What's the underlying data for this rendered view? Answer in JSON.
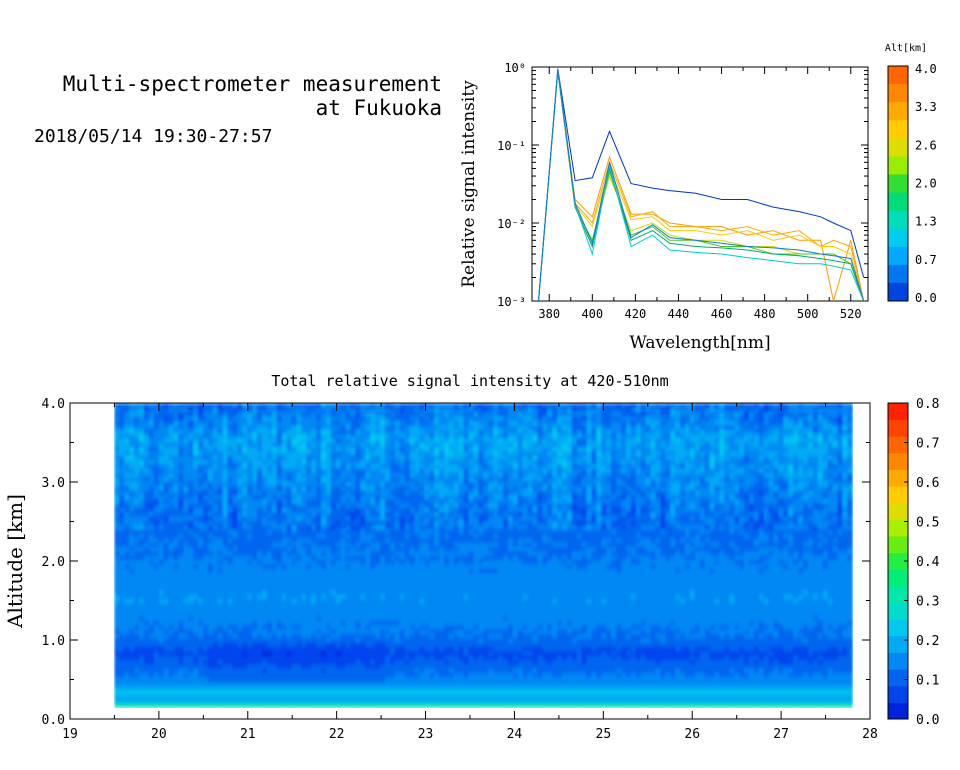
{
  "header": {
    "title_line1": "Multi-spectrometer measurement",
    "title_line2": "at Fukuoka",
    "date_range": "2018/05/14 19:30-27:57"
  },
  "chart_data": [
    {
      "type": "line",
      "xlabel": "Wavelength[nm]",
      "ylabel": "Relative signal intensity",
      "xlim": [
        372,
        528
      ],
      "ylim": [
        0.001,
        1
      ],
      "log_y": true,
      "x_ticks": [
        380,
        400,
        420,
        440,
        460,
        480,
        500,
        520
      ],
      "y_ticks": [
        {
          "value": 1,
          "label": "10⁰"
        },
        {
          "value": 0.1,
          "label": "10⁻¹"
        },
        {
          "value": 0.01,
          "label": "10⁻²"
        },
        {
          "value": 0.001,
          "label": "10⁻³"
        }
      ],
      "x": [
        375,
        384,
        392,
        400,
        408,
        418,
        428,
        436,
        448,
        460,
        472,
        484,
        496,
        506,
        512,
        520,
        526
      ],
      "series": [
        {
          "color": "#0033cc",
          "values": [
            0.001,
            0.95,
            0.035,
            0.038,
            0.15,
            0.032,
            0.028,
            0.026,
            0.024,
            0.02,
            0.02,
            0.016,
            0.014,
            0.012,
            0.01,
            0.008,
            0.002
          ]
        },
        {
          "color": "#ff9900",
          "values": [
            0.001,
            0.9,
            0.02,
            0.012,
            0.07,
            0.013,
            0.013,
            0.01,
            0.009,
            0.009,
            0.007,
            0.008,
            0.006,
            0.006,
            0.001,
            0.006,
            0.001
          ]
        },
        {
          "color": "#ffaa00",
          "values": [
            0.001,
            0.9,
            0.018,
            0.01,
            0.06,
            0.012,
            0.014,
            0.009,
            0.009,
            0.008,
            0.009,
            0.007,
            0.008,
            0.005,
            0.006,
            0.005,
            0.001
          ]
        },
        {
          "color": "#ffcc00",
          "values": [
            0.001,
            0.88,
            0.017,
            0.009,
            0.05,
            0.011,
            0.012,
            0.008,
            0.008,
            0.007,
            0.008,
            0.006,
            0.007,
            0.005,
            0.005,
            0.004,
            0.001
          ]
        },
        {
          "color": "#ccdd00",
          "values": [
            0.001,
            0.88,
            0.016,
            0.006,
            0.04,
            0.008,
            0.01,
            0.007,
            0.006,
            0.006,
            0.005,
            0.005,
            0.004,
            0.004,
            0.004,
            0.003,
            0.001
          ]
        },
        {
          "color": "#44cc22",
          "values": [
            0.001,
            0.9,
            0.016,
            0.006,
            0.045,
            0.007,
            0.009,
            0.006,
            0.006,
            0.005,
            0.005,
            0.004,
            0.004,
            0.004,
            0.004,
            0.003,
            0.001
          ]
        },
        {
          "color": "#00aa66",
          "values": [
            0.001,
            0.9,
            0.016,
            0.005,
            0.05,
            0.006,
            0.008,
            0.0055,
            0.005,
            0.0048,
            0.0045,
            0.004,
            0.0038,
            0.0035,
            0.0033,
            0.003,
            0.001
          ]
        },
        {
          "color": "#00cccc",
          "values": [
            0.001,
            0.92,
            0.017,
            0.004,
            0.055,
            0.005,
            0.007,
            0.0045,
            0.0042,
            0.004,
            0.0036,
            0.0033,
            0.003,
            0.003,
            0.0028,
            0.0025,
            0.001
          ]
        },
        {
          "color": "#1177dd",
          "values": [
            0.001,
            0.93,
            0.018,
            0.0055,
            0.06,
            0.0065,
            0.0095,
            0.0065,
            0.006,
            0.0055,
            0.005,
            0.0048,
            0.0045,
            0.004,
            0.0038,
            0.0035,
            0.001
          ]
        }
      ],
      "colorbar": {
        "title": "Alt[km]",
        "labels": [
          "4.0",
          "3.3",
          "2.6",
          "2.0",
          "1.3",
          "0.7",
          "0.0"
        ],
        "colors": [
          "#ff6600",
          "#ff8800",
          "#ffaa00",
          "#ffcc00",
          "#dddd00",
          "#99ee00",
          "#33dd33",
          "#00dd77",
          "#00ddbb",
          "#00ccee",
          "#00aaff",
          "#0077ee",
          "#0044dd"
        ]
      }
    },
    {
      "type": "heatmap",
      "title": "Total relative signal intensity at 420-510nm",
      "ylabel": "Altitude [km]",
      "xlim": [
        19,
        28
      ],
      "ylim": [
        0,
        4
      ],
      "x_ticks": [
        19,
        20,
        21,
        22,
        23,
        24,
        25,
        26,
        27,
        28
      ],
      "y_ticks": [
        {
          "value": 0,
          "label": "0.0"
        },
        {
          "value": 1,
          "label": "1.0"
        },
        {
          "value": 2,
          "label": "2.0"
        },
        {
          "value": 3,
          "label": "3.0"
        },
        {
          "value": 4,
          "label": "4.0"
        }
      ],
      "data_x_range": [
        19.5,
        27.8
      ],
      "data_y_range": [
        0.15,
        4.0
      ],
      "altitude_profile": [
        {
          "alt": 0.15,
          "value": 0.3
        },
        {
          "alt": 0.22,
          "value": 0.18
        },
        {
          "alt": 0.3,
          "value": 0.22
        },
        {
          "alt": 0.4,
          "value": 0.16
        },
        {
          "alt": 0.8,
          "value": 0.07
        },
        {
          "alt": 1.0,
          "value": 0.12
        },
        {
          "alt": 1.5,
          "value": 0.16
        },
        {
          "alt": 2.0,
          "value": 0.13
        },
        {
          "alt": 2.5,
          "value": 0.11
        },
        {
          "alt": 3.0,
          "value": 0.14
        },
        {
          "alt": 3.5,
          "value": 0.17
        },
        {
          "alt": 4.0,
          "value": 0.1
        }
      ],
      "colorbar": {
        "labels": [
          "0.8",
          "0.7",
          "0.6",
          "0.5",
          "0.4",
          "0.3",
          "0.2",
          "0.1",
          "0.0"
        ],
        "range": [
          0,
          0.8
        ],
        "colors": [
          "#0022dd",
          "#0044ee",
          "#0066f0",
          "#0088f4",
          "#00aaf4",
          "#00c8ee",
          "#00dccc",
          "#00e8a8",
          "#00ee77",
          "#22ee44",
          "#66ee11",
          "#aaee00",
          "#dddd00",
          "#ffcc00",
          "#ffaa00",
          "#ff8800",
          "#ff6600",
          "#ff4400",
          "#ff2200"
        ]
      }
    }
  ]
}
